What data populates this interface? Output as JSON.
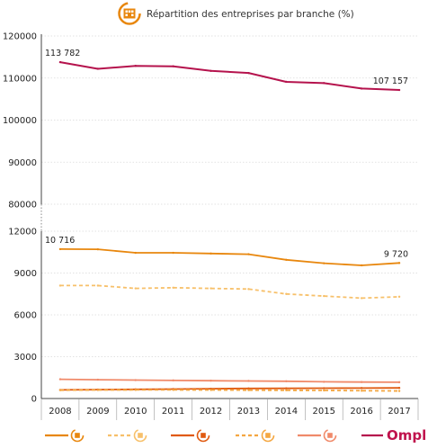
{
  "chart_data": {
    "type": "line",
    "title": "Répartition des entreprises par branche (%)",
    "categories": [
      "2008",
      "2009",
      "2010",
      "2011",
      "2012",
      "2013",
      "2014",
      "2015",
      "2016",
      "2017"
    ],
    "y_ticks_upper": [
      "80000",
      "90000",
      "100000",
      "110000",
      "120000"
    ],
    "y_ticks_lower": [
      "0",
      "3000",
      "6000",
      "9000",
      "12000"
    ],
    "ylim_upper": [
      80000,
      120000
    ],
    "ylim_lower": [
      0,
      12000
    ],
    "axis_break": true,
    "grid": true,
    "legend_position": "bottom",
    "series": [
      {
        "panel": "upper",
        "color": "#b5134d",
        "style": "solid",
        "icon": "ompl-total",
        "values": [
          113782,
          112200,
          112900,
          112800,
          111700,
          111200,
          109100,
          108800,
          107500,
          107157
        ]
      },
      {
        "panel": "lower",
        "color": "#e8870e",
        "style": "solid",
        "icon": "branch-1-icon",
        "values": [
          10716,
          10700,
          10450,
          10450,
          10400,
          10350,
          9950,
          9700,
          9550,
          9720
        ]
      },
      {
        "panel": "lower",
        "color": "#f7c06a",
        "style": "dashed",
        "icon": "branch-2-icon",
        "values": [
          8100,
          8100,
          7900,
          7950,
          7900,
          7850,
          7500,
          7350,
          7200,
          7300
        ]
      },
      {
        "panel": "lower",
        "color": "#f08a6a",
        "style": "solid",
        "icon": "branch-5-icon",
        "values": [
          1380,
          1350,
          1320,
          1300,
          1280,
          1260,
          1240,
          1200,
          1180,
          1170
        ]
      },
      {
        "panel": "lower",
        "color": "#e05a10",
        "style": "solid",
        "icon": "branch-3-icon",
        "values": [
          620,
          640,
          660,
          680,
          700,
          720,
          730,
          740,
          750,
          760
        ]
      },
      {
        "panel": "lower",
        "color": "#f4a742",
        "style": "dashed",
        "icon": "branch-4-icon",
        "values": [
          600,
          610,
          620,
          620,
          610,
          600,
          590,
          580,
          560,
          540
        ]
      }
    ],
    "annotations": [
      {
        "series": 0,
        "index": 0,
        "text": "113 782"
      },
      {
        "series": 0,
        "index": 9,
        "text": "107 157"
      },
      {
        "series": 1,
        "index": 0,
        "text": "10 716"
      },
      {
        "series": 1,
        "index": 9,
        "text": "9 720"
      }
    ],
    "brand": "Ompl"
  }
}
